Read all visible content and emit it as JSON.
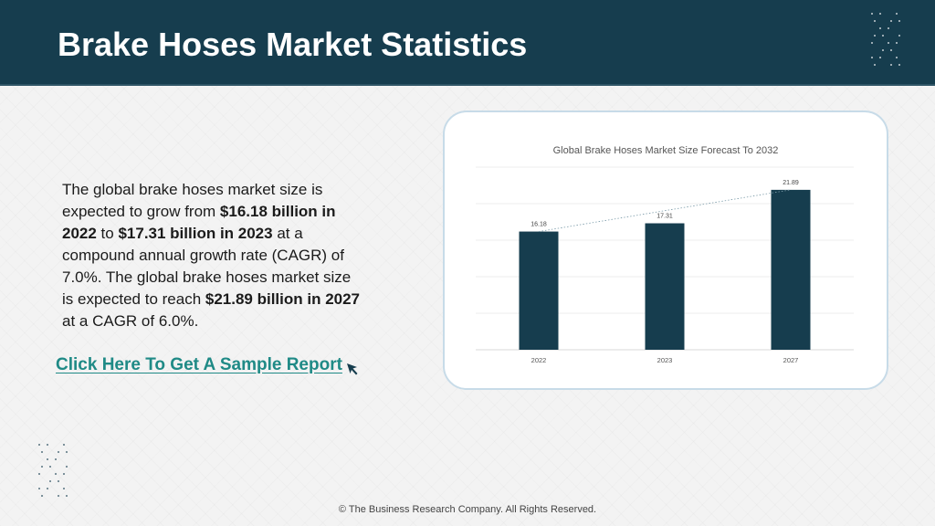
{
  "header": {
    "title": "Brake Hoses Market Statistics"
  },
  "description": {
    "t1": "The global brake hoses market size is expected to grow from ",
    "b1": "$16.18 billion in 2022",
    "t2": " to ",
    "b2": "$17.31 billion in 2023",
    "t3": " at a compound annual growth rate (CAGR) of 7.0%. The global brake hoses market size is expected to reach ",
    "b3": "$21.89 billion in 2027",
    "t4": " at a CAGR of 6.0%."
  },
  "cta": {
    "label": "Click Here To Get A Sample Report",
    "icon": "cursor-arrow-icon"
  },
  "footer": {
    "copyright": "© The Business Research Company. All Rights Reserved."
  },
  "colors": {
    "header_bg": "#163d4e",
    "bar": "#163d4e",
    "link": "#1f8a86",
    "card_border": "#c7dbe8"
  },
  "chart_data": {
    "type": "bar",
    "title": "Global Brake Hoses Market Size Forecast To 2032",
    "categories": [
      "2022",
      "2023",
      "2027"
    ],
    "values": [
      16.18,
      17.31,
      21.89
    ],
    "value_labels": [
      "16.18",
      "17.31",
      "21.89"
    ],
    "ylim": [
      0,
      25
    ],
    "grid": true,
    "trendline": "dotted"
  }
}
